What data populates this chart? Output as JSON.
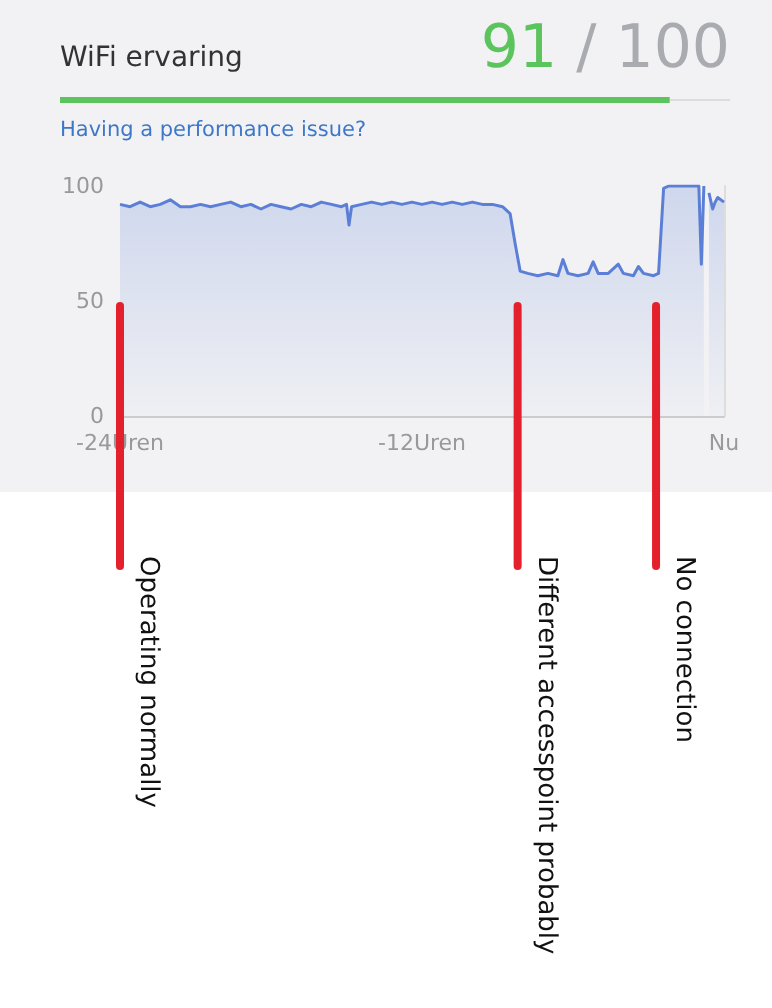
{
  "chart_data": {
    "type": "area",
    "title": "WiFi ervaring",
    "subtitle": "Having a performance issue?",
    "annotations": [
      "91 / 100"
    ],
    "x": [
      -24,
      -23.6,
      -23.2,
      -22.8,
      -22.4,
      -22,
      -21.6,
      -21.2,
      -20.8,
      -20.4,
      -20,
      -19.6,
      -19.2,
      -18.8,
      -18.4,
      -18,
      -17.6,
      -17.2,
      -16.8,
      -16.4,
      -16,
      -15.6,
      -15.2,
      -15,
      -14.9,
      -14.8,
      -14.4,
      -14,
      -13.6,
      -13.2,
      -12.8,
      -12.4,
      -12,
      -11.6,
      -11.2,
      -10.8,
      -10.4,
      -10,
      -9.6,
      -9.2,
      -8.8,
      -8.5,
      -8.3,
      -8.1,
      -7.8,
      -7.4,
      -7,
      -6.6,
      -6.4,
      -6.2,
      -5.8,
      -5.4,
      -5.2,
      -5,
      -4.6,
      -4.2,
      -4,
      -3.6,
      -3.4,
      -3.2,
      -2.8,
      -2.6,
      -2.4,
      -2.2,
      -1.8,
      -1.4,
      -1,
      -0.9,
      -0.8,
      -0.7,
      -0.6,
      -0.45,
      -0.35,
      -0.25,
      0
    ],
    "series": [
      {
        "color": "#5b7fd6",
        "values": [
          92,
          91,
          93,
          91,
          92,
          94,
          91,
          91,
          92,
          91,
          92,
          93,
          91,
          92,
          90,
          92,
          91,
          90,
          92,
          91,
          93,
          92,
          91,
          92,
          83,
          91,
          92,
          93,
          92,
          93,
          92,
          93,
          92,
          93,
          92,
          93,
          92,
          93,
          92,
          92,
          91,
          88,
          75,
          63,
          62,
          61,
          62,
          61,
          68,
          62,
          61,
          62,
          67,
          62,
          62,
          66,
          62,
          61,
          65,
          62,
          61,
          62,
          99,
          100,
          100,
          100,
          100,
          66,
          100,
          null,
          97,
          90,
          93,
          95,
          93
        ]
      }
    ],
    "xlim": [
      -24,
      0
    ],
    "xticks": [
      {
        "value": -24,
        "label": "-24Uren"
      },
      {
        "value": -12,
        "label": "-12Uren"
      },
      {
        "value": 0,
        "label": "Nu"
      }
    ],
    "ylim": [
      0,
      100
    ],
    "yticks": [
      0,
      50,
      100
    ],
    "grid": false,
    "marker": "none",
    "line_style": "solid",
    "ref_lines": [
      {
        "axis": "x",
        "value": -24,
        "label": "Operating normally",
        "color": "#e3202b"
      },
      {
        "axis": "x",
        "value": -8.2,
        "label": "Different accesspoint probably",
        "color": "#e3202b"
      },
      {
        "axis": "x",
        "value": -2.7,
        "label": "No connection",
        "color": "#e3202b"
      }
    ]
  }
}
